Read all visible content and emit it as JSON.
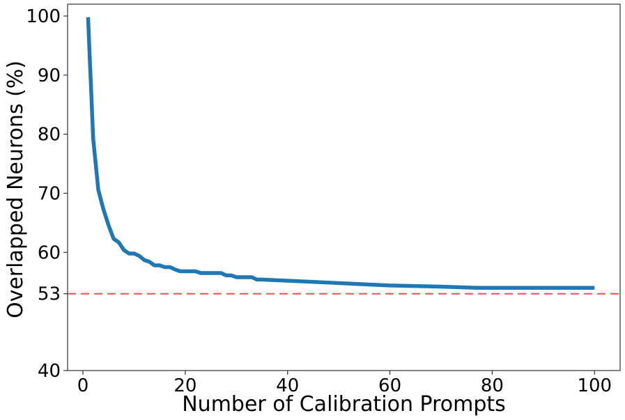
{
  "chart_data": {
    "type": "line",
    "xlabel": "Number of Calibration Prompts",
    "ylabel": "Overlapped Neurons (%)",
    "xlim": [
      -3,
      105
    ],
    "ylim": [
      40,
      102
    ],
    "xticks": [
      0,
      20,
      40,
      60,
      80,
      100
    ],
    "xtick_labels": [
      "0",
      "20",
      "40",
      "60",
      "80",
      "100"
    ],
    "yticks": [
      40,
      53,
      60,
      70,
      80,
      90,
      100
    ],
    "ytick_labels": [
      "40",
      "53",
      "60",
      "70",
      "80",
      "90",
      "100"
    ],
    "grid": false,
    "series": [
      {
        "color": "#1f77b4",
        "x": [
          1,
          2,
          3,
          4,
          5,
          6,
          7,
          8,
          9,
          10,
          11,
          12,
          13,
          14,
          15,
          16,
          17,
          18,
          19,
          20,
          21,
          22,
          23,
          24,
          25,
          26,
          27,
          28,
          29,
          30,
          31,
          32,
          33,
          34,
          35,
          40,
          50,
          60,
          70,
          77,
          80,
          90,
          100
        ],
        "y": [
          99.8,
          79.3,
          70.6,
          67.3,
          64.6,
          62.3,
          61.7,
          60.4,
          59.8,
          59.8,
          59.4,
          58.7,
          58.4,
          57.8,
          57.8,
          57.5,
          57.5,
          57.1,
          56.8,
          56.8,
          56.8,
          56.8,
          56.5,
          56.5,
          56.5,
          56.5,
          56.5,
          56.1,
          56.1,
          55.8,
          55.8,
          55.8,
          55.8,
          55.4,
          55.4,
          55.2,
          54.8,
          54.4,
          54.2,
          54.0,
          54.0,
          54.0,
          54.0
        ]
      }
    ],
    "reference_line": {
      "y": 53,
      "color": "#ff4c4c",
      "style": "dashed"
    }
  }
}
